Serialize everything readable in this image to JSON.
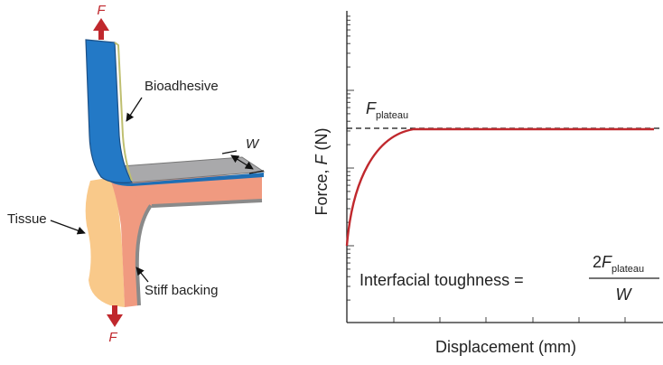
{
  "diagram": {
    "force_top": "F",
    "force_bottom": "F",
    "bioadhesive": "Bioadhesive",
    "width": "W",
    "tissue": "Tissue",
    "backing": "Stiff backing"
  },
  "plot": {
    "y_label": {
      "text": "Force, ",
      "variable": "F",
      "unit": " (N)"
    },
    "x_label": "Displacement (mm)",
    "plateau_label": {
      "variable": "F",
      "subscript": "plateau"
    },
    "equation": {
      "lhs": "Interfacial toughness =",
      "numerator": {
        "coefficient": "2",
        "variable": "F",
        "subscript": "plateau"
      },
      "denominator": "W"
    }
  }
}
